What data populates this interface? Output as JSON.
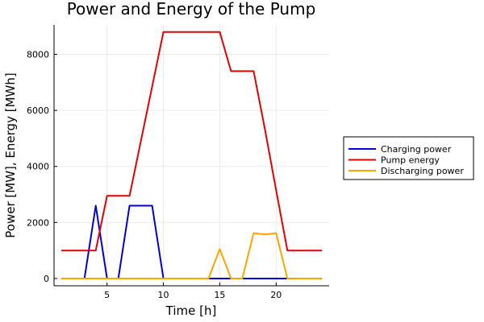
{
  "chart_data": {
    "type": "line",
    "title": "Power and Energy of the Pump",
    "xlabel": "Time [h]",
    "ylabel": "Power [MW], Energy [MWh]",
    "xlim": [
      0.3,
      24.7
    ],
    "ylim": [
      -260,
      9050
    ],
    "xticks": [
      5,
      10,
      15,
      20
    ],
    "yticks": [
      0,
      2000,
      4000,
      6000,
      8000
    ],
    "grid": true,
    "legend": "right",
    "x": [
      1,
      2,
      3,
      4,
      5,
      6,
      7,
      8,
      9,
      10,
      11,
      12,
      13,
      14,
      15,
      16,
      17,
      18,
      19,
      20,
      21,
      22,
      23,
      24
    ],
    "series": [
      {
        "name": "Charging power",
        "color": "#0000dd",
        "values": [
          0,
          0,
          0,
          2600,
          0,
          0,
          2600,
          2600,
          2600,
          0,
          0,
          0,
          0,
          0,
          0,
          0,
          0,
          0,
          0,
          0,
          0,
          0,
          0,
          0
        ]
      },
      {
        "name": "Pump energy",
        "color": "#e60000",
        "values": [
          1000,
          1000,
          1000,
          1000,
          2950,
          2950,
          2950,
          4900,
          6850,
          8800,
          8800,
          8800,
          8800,
          8800,
          8800,
          7400,
          7400,
          7400,
          5350,
          3150,
          1000,
          1000,
          1000,
          1000
        ]
      },
      {
        "name": "Discharging power",
        "color": "#ffa500",
        "values": [
          0,
          0,
          0,
          0,
          0,
          0,
          0,
          0,
          0,
          0,
          0,
          0,
          0,
          0,
          1050,
          0,
          0,
          1620,
          1570,
          1620,
          0,
          0,
          0,
          0
        ]
      }
    ]
  }
}
